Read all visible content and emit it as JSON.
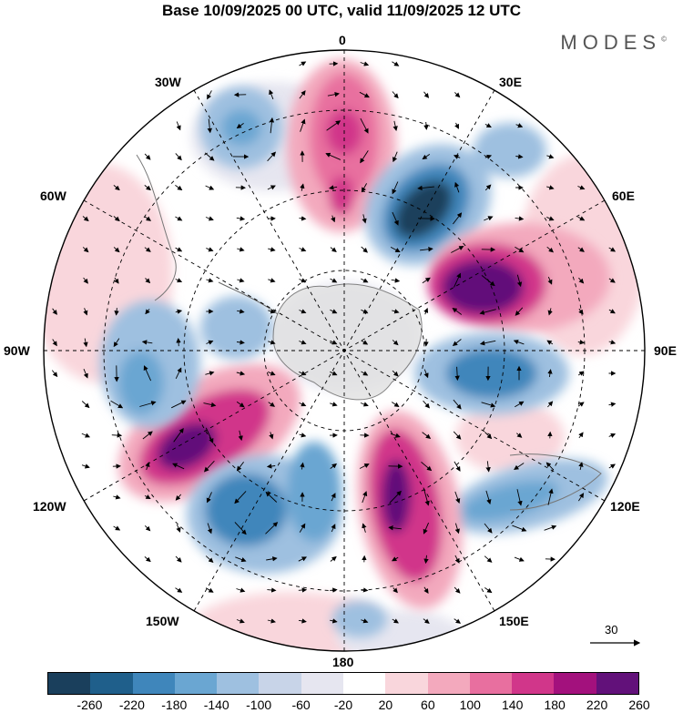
{
  "title": "Base 10/09/2025 00 UTC, valid 11/09/2025 12 UTC",
  "brand": "MODES",
  "brand_mark": "©",
  "longitude_labels": {
    "top": "0",
    "lon30e": "30E",
    "lon60e": "60E",
    "lon90e": "90E",
    "lon120e": "120E",
    "lon150e": "150E",
    "bottom": "180",
    "lon150w": "150W",
    "lon120w": "120W",
    "lon90w": "90W",
    "lon60w": "60W",
    "lon30w": "30W"
  },
  "reference_vector_label": "30",
  "colorbar": {
    "ticks": [
      "-260",
      "-220",
      "-180",
      "-140",
      "-100",
      "-60",
      "-20",
      "20",
      "60",
      "100",
      "140",
      "180",
      "220",
      "260"
    ],
    "colors": [
      "#1a3f5c",
      "#1f5f8b",
      "#3f86bb",
      "#6aa6d2",
      "#9ec0e0",
      "#c8d4e8",
      "#e6e6f0",
      "#ffffff",
      "#f9d6dc",
      "#f3a9bd",
      "#e86f9f",
      "#d1368a",
      "#a3117d",
      "#62117a"
    ]
  },
  "anomaly_features": [
    {
      "name": "positive-anomaly-0",
      "color": "#d1368a"
    },
    {
      "name": "negative-anomaly-30e",
      "color": "#1a3f5c"
    },
    {
      "name": "positive-anomaly-60e",
      "color": "#62117a"
    },
    {
      "name": "negative-anomaly-90e",
      "color": "#3f86bb"
    },
    {
      "name": "positive-anomaly-150e",
      "color": "#a3117d"
    },
    {
      "name": "positive-anomaly-120w",
      "color": "#62117a"
    },
    {
      "name": "negative-anomaly-150w",
      "color": "#3f86bb"
    },
    {
      "name": "negative-anomaly-30w",
      "color": "#6aa6d2"
    },
    {
      "name": "negative-anomaly-120e",
      "color": "#6aa6d2"
    },
    {
      "name": "negative-anomaly-90w",
      "color": "#6aa6d2"
    }
  ]
}
